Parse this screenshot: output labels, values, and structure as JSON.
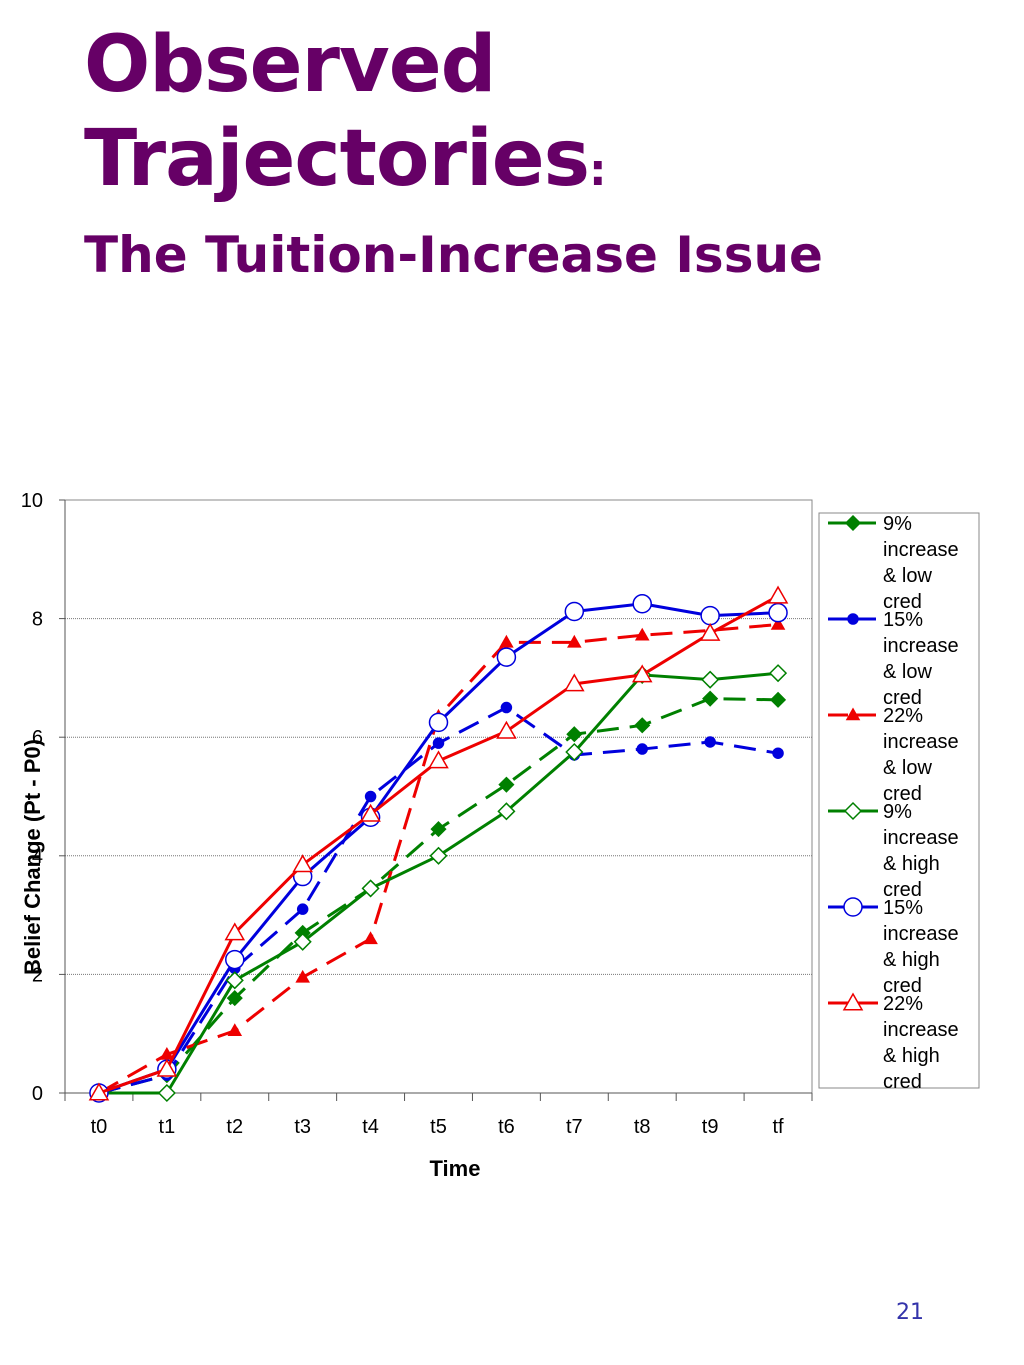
{
  "slide": {
    "title_line1": "Observed",
    "title_line2": "Trajectories",
    "title_colon": ":",
    "subtitle": "The Tuition-Increase Issue",
    "page_number": "21"
  },
  "chart_data": {
    "type": "line",
    "x": [
      "t0",
      "t1",
      "t2",
      "t3",
      "t4",
      "t5",
      "t6",
      "t7",
      "t8",
      "t9",
      "tf"
    ],
    "xlabel": "Time",
    "ylabel": "Belief Change (Pt - P0)",
    "ylim": [
      0,
      10
    ],
    "yticks": [
      0,
      2,
      4,
      6,
      8,
      10
    ],
    "grid": "horizontal",
    "legend": "right",
    "series": [
      {
        "name": "9% increase & low cred",
        "color": "#008000",
        "dash": true,
        "marker": "diamond-filled",
        "values": [
          0,
          0.3,
          1.6,
          2.7,
          3.45,
          4.45,
          5.2,
          6.05,
          6.2,
          6.65,
          6.63
        ]
      },
      {
        "name": "15% increase & low cred",
        "color": "#0000dd",
        "dash": true,
        "marker": "circle-filled",
        "values": [
          0,
          0.3,
          2.1,
          3.1,
          5.0,
          5.9,
          6.5,
          5.7,
          5.8,
          5.92,
          5.73
        ]
      },
      {
        "name": "22% increase & low cred",
        "color": "#ee0000",
        "dash": true,
        "marker": "triangle-filled",
        "values": [
          0,
          0.65,
          1.05,
          1.95,
          2.6,
          6.35,
          7.6,
          7.6,
          7.72,
          7.8,
          7.9
        ]
      },
      {
        "name": "9% increase & high cred",
        "color": "#008000",
        "dash": false,
        "marker": "diamond-open",
        "values": [
          0,
          0,
          1.9,
          2.55,
          3.45,
          4.0,
          4.75,
          5.75,
          7.05,
          6.97,
          7.08
        ]
      },
      {
        "name": "15% increase & high cred",
        "color": "#0000dd",
        "dash": false,
        "marker": "circle-open",
        "values": [
          0,
          0.4,
          2.25,
          3.65,
          4.65,
          6.25,
          7.35,
          8.12,
          8.25,
          8.05,
          8.1
        ]
      },
      {
        "name": "22% increase & high cred",
        "color": "#ee0000",
        "dash": false,
        "marker": "triangle-open",
        "values": [
          0,
          0.4,
          2.7,
          3.85,
          4.7,
          5.6,
          6.1,
          6.9,
          7.05,
          7.75,
          8.38
        ]
      }
    ]
  }
}
